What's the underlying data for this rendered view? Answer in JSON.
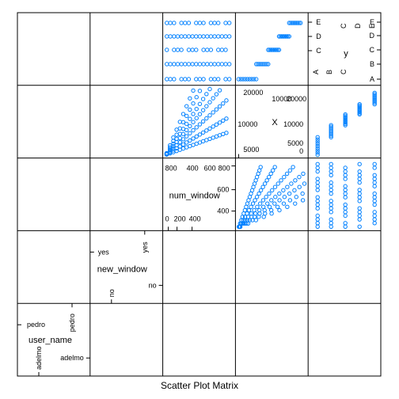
{
  "caption": "Scatter Plot Matrix",
  "colors": {
    "points": "#0080ff",
    "frame": "#000000",
    "text": "#000000"
  },
  "chart_data": {
    "type": "scatter",
    "variables": [
      {
        "name": "user_name",
        "kind": "factor",
        "levels": [
          "adelmo",
          "pedro"
        ]
      },
      {
        "name": "new_window",
        "kind": "factor",
        "levels": [
          "no",
          "yes"
        ]
      },
      {
        "name": "num_window",
        "kind": "numeric",
        "range": [
          0,
          900
        ],
        "ticks_a": [
          "0",
          "200",
          "400"
        ],
        "ticks_b": [
          "400",
          "600",
          "800"
        ]
      },
      {
        "name": "X",
        "kind": "numeric",
        "range": [
          0,
          21000
        ],
        "ticks_a": [
          "0",
          "5000",
          "10000"
        ],
        "ticks_b": [
          "10000",
          "20000"
        ]
      },
      {
        "name": "y",
        "kind": "factor",
        "levels": [
          "A",
          "B",
          "C",
          "D",
          "E"
        ]
      }
    ],
    "panels": {
      "num_window_vs_y": {
        "y_levels": [
          "A",
          "B",
          "C",
          "D",
          "E"
        ],
        "num_window_values": [
          12,
          60,
          110,
          160,
          210,
          260,
          310,
          360,
          410,
          460,
          510,
          560,
          610,
          660,
          710,
          760,
          810,
          860
        ]
      },
      "X_vs_y": {
        "rows": [
          {
            "y": "A",
            "X_min": 0,
            "X_max": 5580
          },
          {
            "y": "B",
            "X_min": 5581,
            "X_max": 9377
          },
          {
            "y": "C",
            "X_min": 9378,
            "X_max": 12799
          },
          {
            "y": "D",
            "X_min": 12800,
            "X_max": 16015
          },
          {
            "y": "E",
            "X_min": 16016,
            "X_max": 19622
          }
        ]
      },
      "X_vs_num_window": {
        "slopes": [
          8.5,
          14,
          21,
          28,
          35,
          44,
          55
        ],
        "num_window_max": 860
      }
    }
  }
}
